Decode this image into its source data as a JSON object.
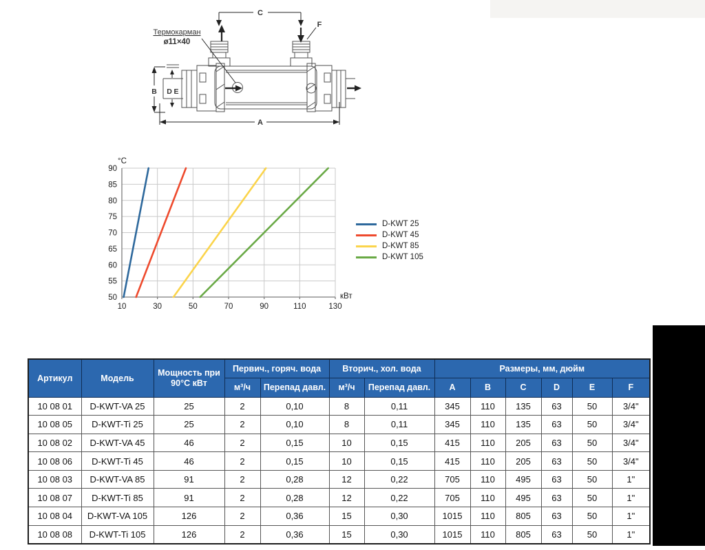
{
  "diagram": {
    "annotation": {
      "line1": "Термокарман",
      "line2": "ø11×40"
    },
    "dims": {
      "a": "A",
      "b": "B",
      "c": "C",
      "d": "D",
      "e": "E",
      "f": "F"
    }
  },
  "chart_data": {
    "type": "line",
    "title": "",
    "xlabel": "кВт",
    "ylabel": "°C",
    "xlim": [
      10,
      130
    ],
    "ylim": [
      50,
      90
    ],
    "xticks": [
      10,
      30,
      50,
      70,
      90,
      110,
      130
    ],
    "yticks": [
      50,
      55,
      60,
      65,
      70,
      75,
      80,
      85,
      90
    ],
    "grid": true,
    "legend_position": "right",
    "series": [
      {
        "name": "D-KWT 25",
        "color": "#2d689c",
        "points": [
          [
            11,
            50
          ],
          [
            25,
            90
          ]
        ]
      },
      {
        "name": "D-KWT 45",
        "color": "#ee4a2d",
        "points": [
          [
            18,
            50
          ],
          [
            46,
            90
          ]
        ]
      },
      {
        "name": "D-KWT 85",
        "color": "#fbd44b",
        "points": [
          [
            39,
            50
          ],
          [
            91,
            90
          ]
        ]
      },
      {
        "name": "D-KWT 105",
        "color": "#69a945",
        "points": [
          [
            54,
            50
          ],
          [
            126,
            90
          ]
        ]
      }
    ]
  },
  "table": {
    "header_bg": "#2c68af",
    "header_fg": "#ffffff",
    "header": {
      "article": "Артикул",
      "model": "Модель",
      "power": "Мощность при 90°C кВт",
      "primary_group": "Первич., горяч. вода",
      "secondary_group": "Вторич., хол. вода",
      "dims_group": "Размеры, мм, дюйм",
      "flow": "м³/ч",
      "pressure_drop": "Перепад давл.",
      "dims": [
        "A",
        "B",
        "C",
        "D",
        "E",
        "F"
      ]
    },
    "rows": [
      [
        "10 08 01",
        "D-KWT-VA 25",
        "25",
        "2",
        "0,10",
        "8",
        "0,11",
        "345",
        "110",
        "135",
        "63",
        "50",
        "3/4\""
      ],
      [
        "10 08 05",
        "D-KWT-Ti 25",
        "25",
        "2",
        "0,10",
        "8",
        "0,11",
        "345",
        "110",
        "135",
        "63",
        "50",
        "3/4\""
      ],
      [
        "10 08 02",
        "D-KWT-VA 45",
        "46",
        "2",
        "0,15",
        "10",
        "0,15",
        "415",
        "110",
        "205",
        "63",
        "50",
        "3/4\""
      ],
      [
        "10 08 06",
        "D-KWT-Ti 45",
        "46",
        "2",
        "0,15",
        "10",
        "0,15",
        "415",
        "110",
        "205",
        "63",
        "50",
        "3/4\""
      ],
      [
        "10 08 03",
        "D-KWT-VA 85",
        "91",
        "2",
        "0,28",
        "12",
        "0,22",
        "705",
        "110",
        "495",
        "63",
        "50",
        "1\""
      ],
      [
        "10 08 07",
        "D-KWT-Ti 85",
        "91",
        "2",
        "0,28",
        "12",
        "0,22",
        "705",
        "110",
        "495",
        "63",
        "50",
        "1\""
      ],
      [
        "10 08 04",
        "D-KWT-VA 105",
        "126",
        "2",
        "0,36",
        "15",
        "0,30",
        "1015",
        "110",
        "805",
        "63",
        "50",
        "1\""
      ],
      [
        "10 08 08",
        "D-KWT-Ti 105",
        "126",
        "2",
        "0,36",
        "15",
        "0,30",
        "1015",
        "110",
        "805",
        "63",
        "50",
        "1\""
      ]
    ]
  }
}
